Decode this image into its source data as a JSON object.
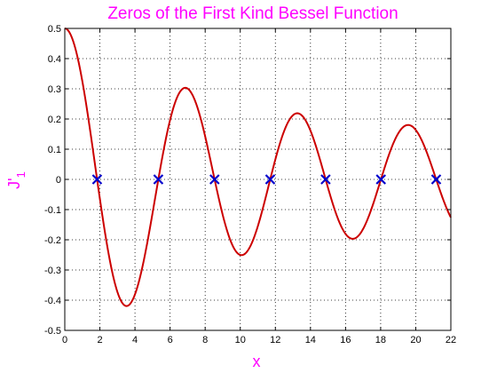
{
  "chart_data": {
    "type": "line",
    "title": "Zeros of the First Kind Bessel Function",
    "xlabel": "x",
    "ylabel_main": "J'",
    "ylabel_sub": "1",
    "xlim": [
      0,
      22
    ],
    "ylim": [
      -0.5,
      0.5
    ],
    "x_ticks": [
      0,
      2,
      4,
      6,
      8,
      10,
      12,
      14,
      16,
      18,
      20,
      22
    ],
    "x_tick_labels": [
      "0",
      "2",
      "4",
      "6",
      "8",
      "10",
      "12",
      "14",
      "16",
      "18",
      "20",
      "22"
    ],
    "y_ticks": [
      -0.5,
      -0.4,
      -0.3,
      -0.2,
      -0.1,
      0,
      0.1,
      0.2,
      0.3,
      0.4,
      0.5
    ],
    "y_tick_labels": [
      "-0.5",
      "-0.4",
      "-0.3",
      "-0.2",
      "-0.1",
      "0",
      "0.1",
      "0.2",
      "0.3",
      "0.4",
      "0.5"
    ],
    "grid": true,
    "grid_style": "dotted",
    "function": "derivative of Bessel J1 (J1'(x) = J0(x) - J1(x)/x)",
    "series_color": "#cc0000",
    "zeros": {
      "marker": "x",
      "color": "#0000cc",
      "x": [
        1.8412,
        5.3314,
        8.5363,
        11.706,
        14.8636,
        18.0155,
        21.1644
      ],
      "y": [
        0,
        0,
        0,
        0,
        0,
        0,
        0
      ]
    },
    "title_color": "#ff00ff",
    "label_color": "#ff00ff"
  }
}
